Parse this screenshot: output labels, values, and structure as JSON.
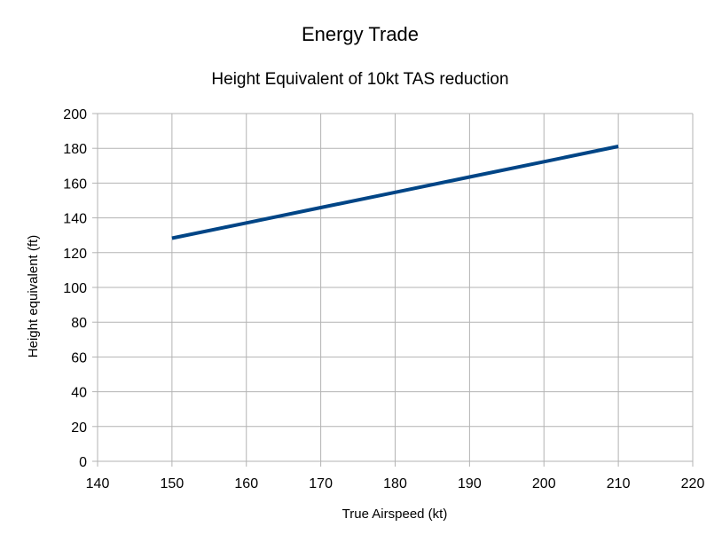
{
  "chart_data": {
    "type": "line",
    "title": "Energy Trade",
    "subtitle": "Height Equivalent of 10kt TAS reduction",
    "xlabel": "True Airspeed (kt)",
    "ylabel": "Height equivalent (ft)",
    "xlim": [
      140,
      220
    ],
    "ylim": [
      0,
      200
    ],
    "x_ticks": [
      "140",
      "150",
      "160",
      "170",
      "180",
      "190",
      "200",
      "210",
      "220"
    ],
    "y_ticks": [
      "0",
      "20",
      "40",
      "60",
      "80",
      "100",
      "120",
      "140",
      "160",
      "180",
      "200"
    ],
    "grid": true,
    "legend": "none",
    "series": [
      {
        "color": "#004586",
        "x": [
          150,
          160,
          170,
          180,
          190,
          200,
          210
        ],
        "y": [
          128.3,
          137.1,
          145.9,
          154.7,
          163.5,
          172.3,
          181.1
        ]
      }
    ]
  }
}
